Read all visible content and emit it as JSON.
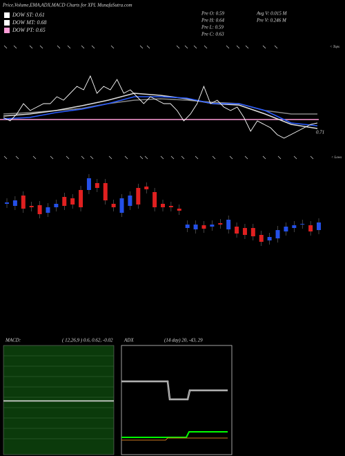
{
  "chart_data": [
    {
      "type": "line",
      "title": "Price,Volume,EMA,ADX,MACD Charts for XPL  MunafaSutra.com",
      "legend": [
        {
          "label": "DOW ST: 0.61",
          "color": "#ffffff"
        },
        {
          "label": "DOW MT: 0.68",
          "color": "#ffffff"
        },
        {
          "label": "DOW PT: 0.65",
          "color": "#ff9ed8"
        }
      ],
      "stats": [
        "Pre  O: 0.59",
        "Pre  H: 0.64",
        "Pre  L: 0.59",
        "Pre  C: 0.63"
      ],
      "stats2": [
        "Avg V: 0.015 M",
        "Pre  V: 0.246 M"
      ],
      "top_note": "< Tops",
      "last_label": "0.71",
      "ylim": [
        0.556,
        0.876
      ],
      "hline": {
        "value": 0.65,
        "color": "#ff9ed8"
      },
      "series": [
        {
          "color": "#ffffff",
          "values": [
            0.656,
            0.646,
            0.666,
            0.696,
            0.676,
            0.686,
            0.696,
            0.696,
            0.716,
            0.706,
            0.726,
            0.746,
            0.736,
            0.776,
            0.726,
            0.746,
            0.736,
            0.766,
            0.726,
            0.736,
            0.716,
            0.696,
            0.716,
            0.706,
            0.696,
            0.696,
            0.676,
            0.646,
            0.666,
            0.696,
            0.746,
            0.696,
            0.706,
            0.686,
            0.676,
            0.686,
            0.656,
            0.616,
            0.646,
            0.636,
            0.626,
            0.606,
            0.596,
            0.606,
            0.616,
            0.626,
            0.636,
            0.64
          ]
        },
        {
          "color": "#2a5cff",
          "values": [
            0.652,
            0.656,
            0.67,
            0.68,
            0.696,
            0.716,
            0.716,
            0.712,
            0.696,
            0.696,
            0.676,
            0.64,
            0.632
          ]
        },
        {
          "color": "#dddddd",
          "values": [
            0.66,
            0.666,
            0.676,
            0.69,
            0.706,
            0.726,
            0.72,
            0.71,
            0.696,
            0.692,
            0.666,
            0.636,
            0.624
          ]
        },
        {
          "color": "#888888",
          "values": [
            0.666,
            0.67,
            0.676,
            0.682,
            0.696,
            0.706,
            0.71,
            0.706,
            0.7,
            0.696,
            0.676,
            0.666,
            0.666
          ]
        }
      ]
    },
    {
      "type": "candlestick",
      "low_note": "< Lows",
      "ylim": [
        0.55,
        0.81
      ],
      "up_color": "#2450e8",
      "down_color": "#e02020",
      "open": [
        0.7,
        0.694,
        0.724,
        0.694,
        0.696,
        0.674,
        0.69,
        0.72,
        0.716,
        0.74,
        0.74,
        0.76,
        0.76,
        0.7,
        0.674,
        0.694,
        0.746,
        0.75,
        0.734,
        0.7,
        0.694,
        0.686,
        0.63,
        0.626,
        0.638,
        0.634,
        0.644,
        0.626,
        0.634,
        0.63,
        0.63,
        0.61,
        0.594,
        0.6,
        0.62,
        0.63,
        0.64,
        0.638,
        0.624
      ],
      "close": [
        0.704,
        0.71,
        0.686,
        0.69,
        0.67,
        0.69,
        0.7,
        0.694,
        0.698,
        0.69,
        0.774,
        0.746,
        0.71,
        0.69,
        0.716,
        0.724,
        0.698,
        0.742,
        0.69,
        0.69,
        0.69,
        0.68,
        0.64,
        0.64,
        0.628,
        0.64,
        0.64,
        0.654,
        0.614,
        0.61,
        0.606,
        0.59,
        0.604,
        0.624,
        0.634,
        0.638,
        0.642,
        0.62,
        0.646
      ]
    },
    {
      "type": "macd",
      "title": "MACD:",
      "subtitle": "( 12,26,9 ) 0.6,  0.62,  -0.02"
    },
    {
      "type": "adx",
      "title": "ADX",
      "subtitle": "(14  day) 20,  -43,  29"
    }
  ]
}
